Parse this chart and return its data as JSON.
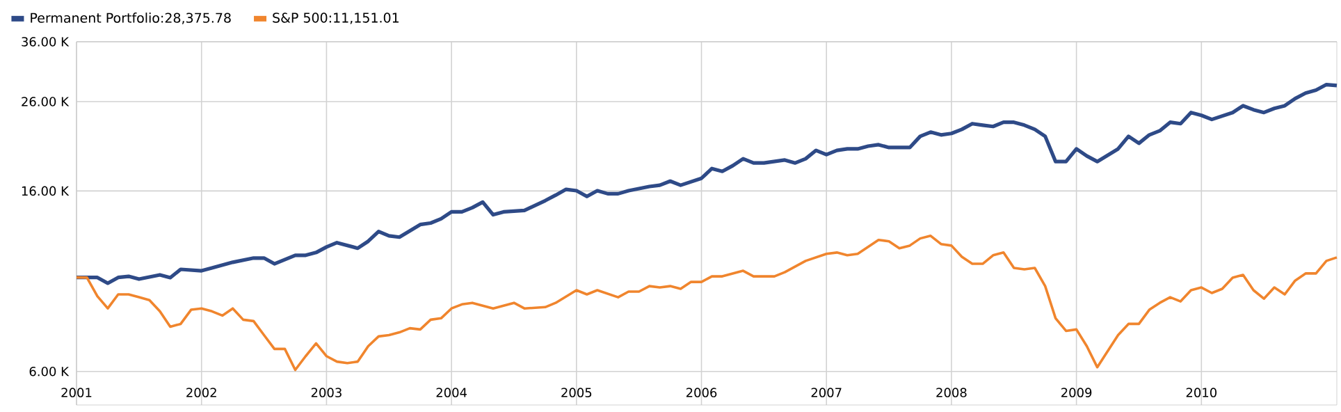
{
  "chart_data": {
    "type": "line",
    "log": "y",
    "grid": true,
    "legend": "top left",
    "xlim": [
      "2001-01",
      "2011-02"
    ],
    "xticks": [
      "2001",
      "2002",
      "2003",
      "2004",
      "2005",
      "2006",
      "2007",
      "2008",
      "2009",
      "2010"
    ],
    "ylim": [
      5000,
      36000
    ],
    "yticks": [
      {
        "value": 6000,
        "label": "6.00 K"
      },
      {
        "value": 16000,
        "label": "16.00 K"
      },
      {
        "value": 26000,
        "label": "26.00 K"
      },
      {
        "value": 36000,
        "label": "36.00 K"
      }
    ],
    "series": [
      {
        "name": "Permanent Portfolio:28,375.78",
        "color": "#2e4a87",
        "x": [
          "2001-01",
          "2001-03",
          "2001-04",
          "2001-05",
          "2001-06",
          "2001-07",
          "2001-09",
          "2001-10",
          "2001-11",
          "2002-01",
          "2002-02",
          "2002-04",
          "2002-06",
          "2002-07",
          "2002-08",
          "2002-10",
          "2002-11",
          "2002-12",
          "2003-01",
          "2003-02",
          "2003-04",
          "2003-05",
          "2003-06",
          "2003-07",
          "2003-08",
          "2003-10",
          "2003-11",
          "2003-12",
          "2004-01",
          "2004-02",
          "2004-03",
          "2004-04",
          "2004-05",
          "2004-06",
          "2004-08",
          "2004-10",
          "2004-11",
          "2004-12",
          "2005-01",
          "2005-02",
          "2005-03",
          "2005-04",
          "2005-05",
          "2005-06",
          "2005-08",
          "2005-09",
          "2005-10",
          "2005-11",
          "2006-01",
          "2006-02",
          "2006-03",
          "2006-04",
          "2006-05",
          "2006-06",
          "2006-07",
          "2006-09",
          "2006-10",
          "2006-11",
          "2006-12",
          "2007-01",
          "2007-02",
          "2007-03",
          "2007-04",
          "2007-05",
          "2007-06",
          "2007-07",
          "2007-09",
          "2007-10",
          "2007-11",
          "2007-12",
          "2008-01",
          "2008-02",
          "2008-03",
          "2008-04",
          "2008-05",
          "2008-06",
          "2008-07",
          "2008-08",
          "2008-09",
          "2008-10",
          "2008-11",
          "2008-12",
          "2009-01",
          "2009-02",
          "2009-03",
          "2009-05",
          "2009-06",
          "2009-07",
          "2009-08",
          "2009-09",
          "2009-10",
          "2009-11",
          "2009-12",
          "2010-01",
          "2010-02",
          "2010-04",
          "2010-05",
          "2010-06",
          "2010-07",
          "2010-08",
          "2010-09",
          "2010-10",
          "2010-11",
          "2010-12",
          "2011-01",
          "2011-02"
        ],
        "values": [
          10000,
          10000,
          9690,
          10000,
          10060,
          9910,
          10140,
          9990,
          10450,
          10370,
          10530,
          10860,
          11110,
          11110,
          10770,
          11280,
          11280,
          11450,
          11800,
          12080,
          11720,
          12170,
          12840,
          12540,
          12450,
          13330,
          13440,
          13750,
          14280,
          14280,
          14610,
          15060,
          14060,
          14280,
          14390,
          15180,
          15640,
          16140,
          16020,
          15530,
          16020,
          15760,
          15760,
          16020,
          16390,
          16510,
          16880,
          16510,
          17140,
          18070,
          17800,
          18350,
          19060,
          18630,
          18630,
          18930,
          18630,
          19060,
          19950,
          19500,
          19950,
          20110,
          20110,
          20410,
          20570,
          20260,
          20260,
          21530,
          22030,
          21700,
          21870,
          22360,
          23060,
          22880,
          22710,
          23240,
          23240,
          22880,
          22360,
          21530,
          18770,
          18770,
          20110,
          19350,
          18770,
          20110,
          21530,
          20730,
          21700,
          22190,
          23240,
          23060,
          24500,
          24130,
          23600,
          24500,
          25420,
          24880,
          24500,
          25060,
          25420,
          26430,
          27230,
          27670,
          28520,
          28376
        ]
      },
      {
        "name": "S&P 500:11,151.01",
        "color": "#f0852d",
        "x": [
          "2001-01",
          "2001-02",
          "2001-03",
          "2001-04",
          "2001-05",
          "2001-06",
          "2001-07",
          "2001-08",
          "2001-09",
          "2001-10",
          "2001-11",
          "2001-12",
          "2002-01",
          "2002-02",
          "2002-03",
          "2002-04",
          "2002-05",
          "2002-06",
          "2002-07",
          "2002-08",
          "2002-09",
          "2002-10",
          "2002-11",
          "2002-12",
          "2003-01",
          "2003-02",
          "2003-03",
          "2003-04",
          "2003-05",
          "2003-06",
          "2003-07",
          "2003-08",
          "2003-09",
          "2003-10",
          "2003-11",
          "2003-12",
          "2004-01",
          "2004-02",
          "2004-03",
          "2004-05",
          "2004-07",
          "2004-08",
          "2004-10",
          "2004-11",
          "2005-01",
          "2005-02",
          "2005-03",
          "2005-05",
          "2005-06",
          "2005-07",
          "2005-08",
          "2005-09",
          "2005-10",
          "2005-11",
          "2005-12",
          "2006-01",
          "2006-02",
          "2006-03",
          "2006-05",
          "2006-06",
          "2006-08",
          "2006-09",
          "2006-11",
          "2007-01",
          "2007-02",
          "2007-03",
          "2007-04",
          "2007-06",
          "2007-07",
          "2007-08",
          "2007-09",
          "2007-10",
          "2007-11",
          "2007-12",
          "2008-01",
          "2008-02",
          "2008-03",
          "2008-04",
          "2008-05",
          "2008-06",
          "2008-07",
          "2008-08",
          "2008-09",
          "2008-10",
          "2008-11",
          "2008-12",
          "2009-01",
          "2009-02",
          "2009-03",
          "2009-05",
          "2009-06",
          "2009-07",
          "2009-08",
          "2009-09",
          "2009-10",
          "2009-11",
          "2009-12",
          "2010-01",
          "2010-02",
          "2010-03",
          "2010-04",
          "2010-05",
          "2010-06",
          "2010-07",
          "2010-08",
          "2010-09",
          "2010-10",
          "2010-11",
          "2010-12",
          "2011-01",
          "2011-02"
        ],
        "values": [
          10000,
          9990,
          9030,
          8450,
          9120,
          9120,
          8980,
          8840,
          8320,
          7650,
          7770,
          8390,
          8450,
          8320,
          8130,
          8450,
          7950,
          7890,
          7310,
          6780,
          6780,
          6050,
          6520,
          6990,
          6520,
          6330,
          6280,
          6330,
          6880,
          7260,
          7310,
          7420,
          7590,
          7540,
          7950,
          8010,
          8450,
          8640,
          8710,
          8450,
          8710,
          8450,
          8510,
          8710,
          9330,
          9120,
          9330,
          8980,
          9260,
          9260,
          9540,
          9470,
          9540,
          9400,
          9760,
          9760,
          10060,
          10060,
          10370,
          10060,
          10060,
          10290,
          10940,
          11370,
          11450,
          11280,
          11370,
          12260,
          12170,
          11720,
          11890,
          12360,
          12540,
          11990,
          11890,
          11190,
          10770,
          10770,
          11280,
          11450,
          10530,
          10450,
          10530,
          9540,
          8010,
          7480,
          7540,
          6880,
          6140,
          7310,
          7770,
          7770,
          8390,
          8710,
          8980,
          8780,
          9330,
          9470,
          9190,
          9400,
          9990,
          10140,
          9330,
          8910,
          9470,
          9120,
          9830,
          10220,
          10220,
          10940,
          11151
        ]
      }
    ]
  }
}
